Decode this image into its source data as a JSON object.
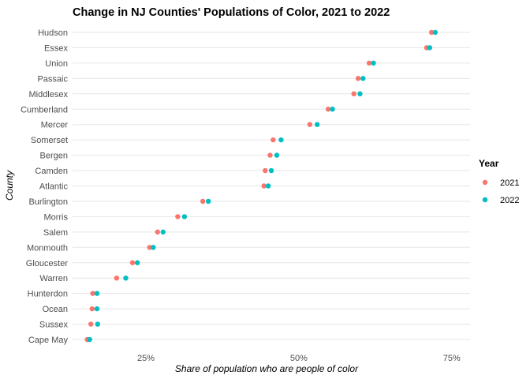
{
  "chart_data": {
    "type": "scatter",
    "title": "Change in NJ Counties' Populations of Color, 2021 to 2022",
    "xlabel": "Share of population who are people of color",
    "ylabel": "County",
    "xlim": [
      0.13,
      0.78
    ],
    "xticks": [
      {
        "value": 0.25,
        "label": "25%"
      },
      {
        "value": 0.5,
        "label": "50%"
      },
      {
        "value": 0.75,
        "label": "75%"
      }
    ],
    "grid": true,
    "legend": {
      "title": "Year",
      "position": "right"
    },
    "categories": [
      "Hudson",
      "Essex",
      "Union",
      "Passaic",
      "Middlesex",
      "Cumberland",
      "Mercer",
      "Somerset",
      "Bergen",
      "Camden",
      "Atlantic",
      "Burlington",
      "Morris",
      "Salem",
      "Monmouth",
      "Gloucester",
      "Warren",
      "Hunterdon",
      "Ocean",
      "Sussex",
      "Cape May"
    ],
    "series": [
      {
        "name": "2021",
        "color": "#F8766D",
        "values": [
          0.717,
          0.709,
          0.615,
          0.597,
          0.59,
          0.548,
          0.518,
          0.458,
          0.453,
          0.445,
          0.443,
          0.343,
          0.302,
          0.269,
          0.256,
          0.228,
          0.202,
          0.163,
          0.162,
          0.16,
          0.154
        ]
      },
      {
        "name": "2022",
        "color": "#00BFC4",
        "values": [
          0.723,
          0.714,
          0.622,
          0.605,
          0.6,
          0.555,
          0.53,
          0.471,
          0.464,
          0.455,
          0.45,
          0.352,
          0.313,
          0.278,
          0.262,
          0.236,
          0.217,
          0.17,
          0.17,
          0.171,
          0.158
        ]
      }
    ]
  }
}
